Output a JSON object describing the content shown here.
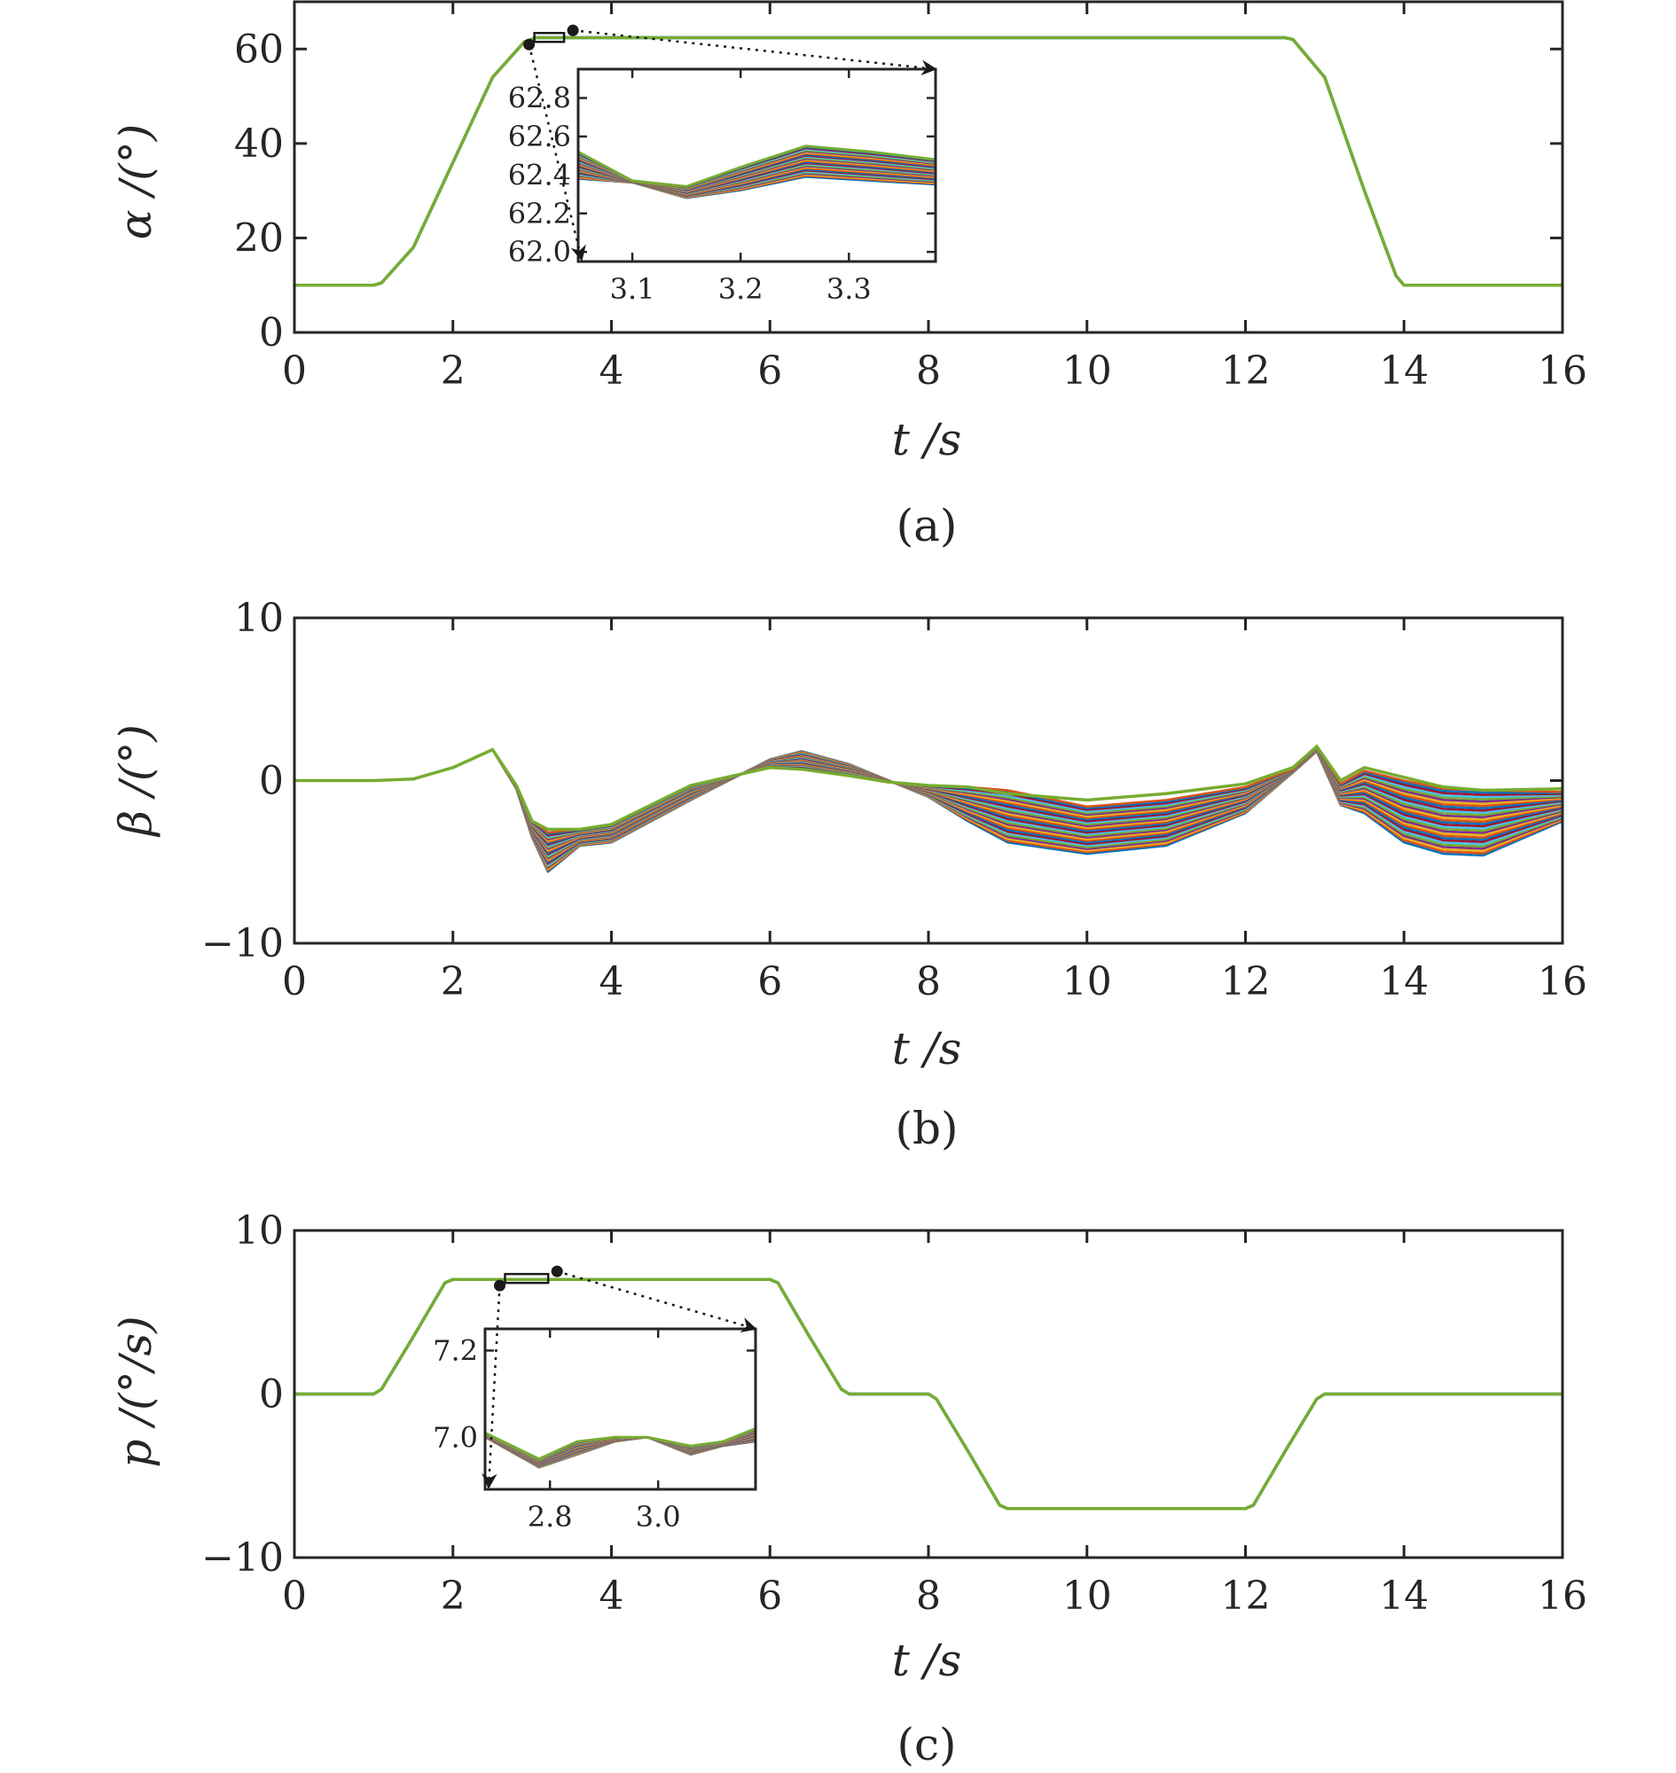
{
  "colors": {
    "axis": "#262626",
    "palette": [
      "#0072BD",
      "#D95319",
      "#EDB120",
      "#7E2F8E",
      "#77AC30",
      "#4DBEEE",
      "#A2142F"
    ],
    "top_series": "#77AC30"
  },
  "chart_data": [
    {
      "type": "line",
      "ylabel": "α /(°)",
      "xlabel": "t /s",
      "caption": "(a)",
      "xlim": [
        0,
        16
      ],
      "ylim": [
        0,
        70
      ],
      "xticks": [
        "0",
        "2",
        "4",
        "6",
        "8",
        "10",
        "12",
        "14",
        "16"
      ],
      "yticks": [
        "0",
        "20",
        "40",
        "60"
      ],
      "grid": false,
      "series_count": 30,
      "x": [
        0,
        1,
        1.1,
        1.5,
        2.0,
        2.5,
        2.9,
        3.05,
        12.5,
        12.6,
        13.0,
        13.5,
        13.9,
        14.0,
        16
      ],
      "y": [
        10,
        10,
        10.5,
        18,
        36,
        54,
        61.5,
        62.4,
        62.4,
        62,
        54,
        30,
        12,
        10,
        10
      ],
      "inset": {
        "xlim": [
          3.05,
          3.38
        ],
        "ylim": [
          61.95,
          62.95
        ],
        "xticks": [
          "3.1",
          "3.2",
          "3.3"
        ],
        "yticks": [
          "62.0",
          "62.2",
          "62.4",
          "62.6",
          "62.8"
        ],
        "x": [
          3.05,
          3.1,
          3.15,
          3.2,
          3.26,
          3.32,
          3.38
        ],
        "y_low": [
          62.38,
          62.36,
          62.28,
          62.32,
          62.39,
          62.37,
          62.35
        ],
        "y_high": [
          62.52,
          62.37,
          62.34,
          62.44,
          62.55,
          62.52,
          62.48
        ]
      }
    },
    {
      "type": "line",
      "ylabel": "β /(°)",
      "xlabel": "t /s",
      "caption": "(b)",
      "xlim": [
        0,
        16
      ],
      "ylim": [
        -10,
        10
      ],
      "xticks": [
        "0",
        "2",
        "4",
        "6",
        "8",
        "10",
        "12",
        "14",
        "16"
      ],
      "yticks": [
        "−10",
        "0",
        "10"
      ],
      "grid": false,
      "series_count": 30,
      "x": [
        0,
        1,
        1.5,
        2.0,
        2.5,
        2.8,
        3.0,
        3.2,
        3.6,
        4.0,
        5.0,
        6.0,
        6.4,
        7.0,
        7.5,
        8.0,
        8.5,
        9.0,
        10.0,
        11.0,
        12.0,
        12.6,
        12.9,
        13.2,
        13.5,
        14.0,
        14.5,
        15.0,
        16.0
      ],
      "y_low": [
        0,
        0,
        0.1,
        0.8,
        1.9,
        -0.5,
        -3.5,
        -5.6,
        -4.0,
        -3.8,
        -1.2,
        1.3,
        1.8,
        1.0,
        0.0,
        -1.0,
        -2.5,
        -3.8,
        -4.5,
        -4.0,
        -2.0,
        0.5,
        1.8,
        -1.5,
        -2.0,
        -3.8,
        -4.5,
        -4.6,
        -2.5
      ],
      "y_high": [
        0,
        0,
        0.1,
        0.8,
        1.9,
        -0.3,
        -2.5,
        -3.2,
        -3.0,
        -2.7,
        -0.3,
        0.8,
        0.7,
        0.3,
        -0.1,
        -0.3,
        -0.4,
        -0.6,
        -1.6,
        -1.2,
        -0.4,
        0.7,
        2.1,
        -0.2,
        0.6,
        0.0,
        -0.5,
        -0.6,
        -0.7
      ],
      "y_top": [
        0,
        0,
        0.1,
        0.8,
        1.9,
        -0.3,
        -2.5,
        -3.0,
        -3.0,
        -2.7,
        -0.3,
        0.8,
        0.7,
        0.3,
        -0.1,
        -0.3,
        -0.4,
        -0.8,
        -1.2,
        -0.8,
        -0.2,
        0.8,
        2.1,
        0.0,
        0.8,
        0.2,
        -0.4,
        -0.6,
        -0.5
      ]
    },
    {
      "type": "line",
      "ylabel": "p /(°/s)",
      "xlabel": "t /s",
      "caption": "(c)",
      "xlim": [
        0,
        16
      ],
      "ylim": [
        -10,
        10
      ],
      "xticks": [
        "0",
        "2",
        "4",
        "6",
        "8",
        "10",
        "12",
        "14",
        "16"
      ],
      "yticks": [
        "−10",
        "0",
        "10"
      ],
      "grid": false,
      "series_count": 30,
      "x": [
        0,
        1.0,
        1.1,
        1.5,
        1.9,
        2.0,
        6.0,
        6.1,
        6.5,
        6.9,
        7.0,
        8.0,
        8.1,
        8.5,
        8.9,
        9.0,
        12.0,
        12.1,
        12.5,
        12.9,
        13.0,
        16.0
      ],
      "y": [
        0,
        0,
        0.3,
        3.5,
        6.8,
        7.0,
        7.0,
        6.8,
        3.5,
        0.3,
        0,
        0,
        -0.3,
        -3.5,
        -6.8,
        -7.0,
        -7.0,
        -6.8,
        -3.5,
        -0.3,
        0,
        0
      ],
      "inset": {
        "xlim": [
          2.68,
          3.18
        ],
        "ylim": [
          6.88,
          7.25
        ],
        "xticks": [
          "2.8",
          "3.0"
        ],
        "yticks": [
          "7.0",
          "7.2"
        ],
        "x": [
          2.68,
          2.78,
          2.85,
          2.92,
          2.98,
          3.06,
          3.12,
          3.18
        ],
        "y_low": [
          7.0,
          6.93,
          6.96,
          6.99,
          7.0,
          6.96,
          6.98,
          6.99
        ],
        "y_high": [
          7.01,
          6.95,
          6.99,
          7.0,
          7.0,
          6.98,
          6.99,
          7.02
        ]
      }
    }
  ]
}
